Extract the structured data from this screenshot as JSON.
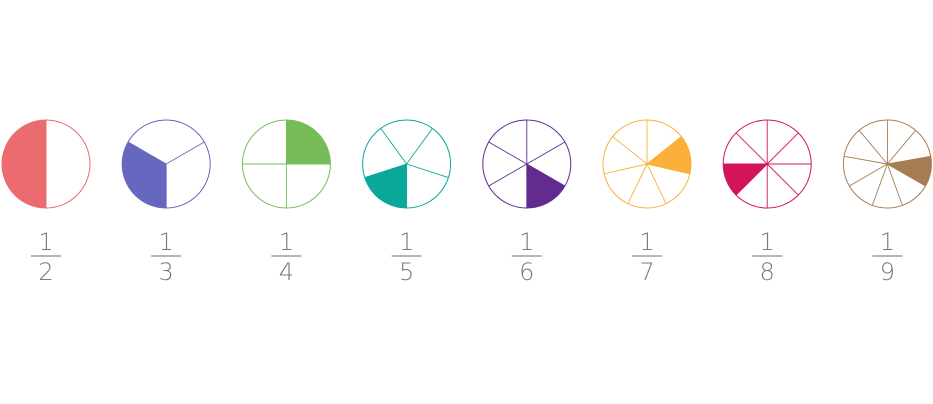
{
  "fractions": [
    {
      "numerator": "1",
      "denominator": "2",
      "parts": 2,
      "highlighted_part": 1,
      "color": "#eb6b6e"
    },
    {
      "numerator": "1",
      "denominator": "3",
      "parts": 3,
      "highlighted_part": 1,
      "color": "#6667bf"
    },
    {
      "numerator": "1",
      "denominator": "4",
      "parts": 4,
      "highlighted_part": 0,
      "color": "#76bd5a"
    },
    {
      "numerator": "1",
      "denominator": "5",
      "parts": 5,
      "highlighted_part": 2,
      "color": "#0aa89a"
    },
    {
      "numerator": "1",
      "denominator": "6",
      "parts": 6,
      "highlighted_part": 2,
      "color": "#612b90"
    },
    {
      "numerator": "1",
      "denominator": "7",
      "parts": 7,
      "highlighted_part": 1,
      "color": "#fbb03b"
    },
    {
      "numerator": "1",
      "denominator": "8",
      "parts": 8,
      "highlighted_part": 5,
      "color": "#d4145a"
    },
    {
      "numerator": "1",
      "denominator": "9",
      "parts": 9,
      "highlighted_part": 2,
      "color": "#a67c52"
    }
  ]
}
